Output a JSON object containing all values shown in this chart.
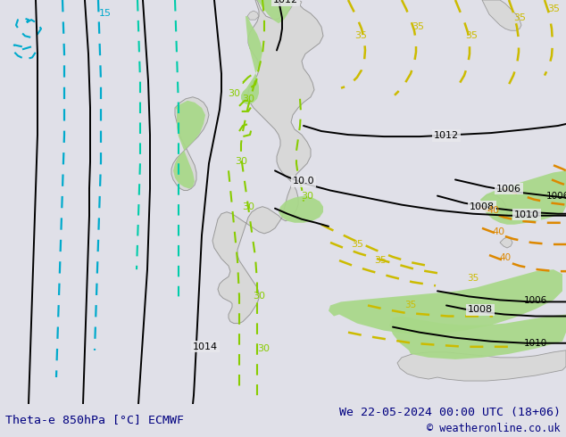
{
  "title_left": "Theta-e 850hPa [°C] ECMWF",
  "title_right": "We 22-05-2024 00:00 UTC (18+06)",
  "copyright": "© weatheronline.co.uk",
  "bg_color": "#e0e0e8",
  "map_bg": "#e8e8ec",
  "land_color": "#d8d8d8",
  "green_fill": "#a8d888",
  "bottom_bar_color": "#c0c0d0",
  "bottom_text_color": "#000080",
  "title_fontsize": 9.5,
  "copyright_fontsize": 8.5,
  "black_line_color": "#000000",
  "cyan_color": "#00aacc",
  "teal_color": "#00ccaa",
  "lime_color": "#88cc00",
  "yellow_color": "#ccbb00",
  "orange_color": "#dd8800"
}
